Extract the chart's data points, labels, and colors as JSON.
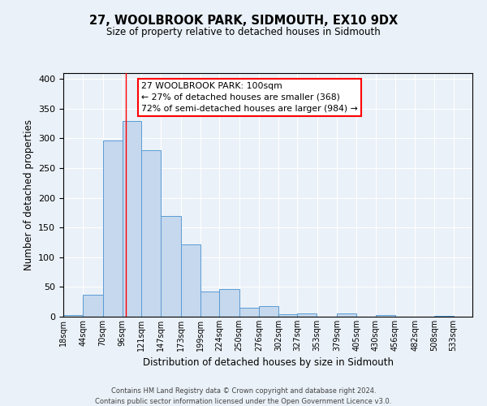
{
  "title": "27, WOOLBROOK PARK, SIDMOUTH, EX10 9DX",
  "subtitle": "Size of property relative to detached houses in Sidmouth",
  "xlabel": "Distribution of detached houses by size in Sidmouth",
  "ylabel": "Number of detached properties",
  "bar_left_edges": [
    18,
    44,
    70,
    96,
    121,
    147,
    173,
    199,
    224,
    250,
    276,
    302,
    327,
    353,
    379,
    405,
    430,
    456,
    482,
    508
  ],
  "bar_widths": [
    26,
    26,
    26,
    25,
    26,
    26,
    26,
    25,
    26,
    26,
    26,
    25,
    25,
    26,
    26,
    25,
    26,
    26,
    26,
    25
  ],
  "bar_heights": [
    3,
    37,
    297,
    330,
    280,
    170,
    122,
    43,
    46,
    15,
    18,
    4,
    6,
    0,
    6,
    0,
    3,
    0,
    0,
    2
  ],
  "x_tick_labels": [
    "18sqm",
    "44sqm",
    "70sqm",
    "96sqm",
    "121sqm",
    "147sqm",
    "173sqm",
    "199sqm",
    "224sqm",
    "250sqm",
    "276sqm",
    "302sqm",
    "327sqm",
    "353sqm",
    "379sqm",
    "405sqm",
    "430sqm",
    "456sqm",
    "482sqm",
    "508sqm",
    "533sqm"
  ],
  "ylim": [
    0,
    410
  ],
  "yticks": [
    0,
    50,
    100,
    150,
    200,
    250,
    300,
    350,
    400
  ],
  "bar_color": "#c5d8ed",
  "bar_edge_color": "#5b9bd5",
  "red_line_x": 100,
  "annotation_box_text": "27 WOOLBROOK PARK: 100sqm\n← 27% of detached houses are smaller (368)\n72% of semi-detached houses are larger (984) →",
  "bg_color": "#eaf1f8",
  "plot_bg_color": "#eaf1f8",
  "grid_color": "white",
  "footer_line1": "Contains HM Land Registry data © Crown copyright and database right 2024.",
  "footer_line2": "Contains public sector information licensed under the Open Government Licence v3.0."
}
